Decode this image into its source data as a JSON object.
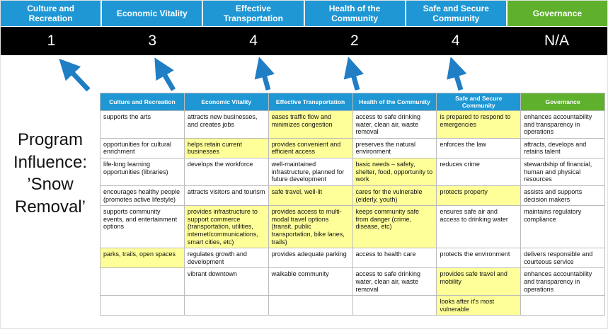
{
  "title": "Program Influence: ’Snow Removal’",
  "colors": {
    "header_blue": "#1f97d4",
    "header_green": "#5fb12d",
    "score_bar": "#000000",
    "score_text": "#ffffff",
    "highlight_yellow": "#ffff99",
    "arrow_blue": "#1f7ec4",
    "grid_border": "#bcbcbc"
  },
  "pillars": [
    {
      "label": "Culture and Recreation",
      "score": "1"
    },
    {
      "label": "Economic Vitality",
      "score": "3"
    },
    {
      "label": "Effective Transportation",
      "score": "4"
    },
    {
      "label": "Health of the Community",
      "score": "2"
    },
    {
      "label": "Safe and Secure Community",
      "score": "4"
    },
    {
      "label": "Governance",
      "score": "N/A"
    }
  ],
  "table": {
    "headers": [
      "Culture and Recreation",
      "Economic Vitality",
      "Effective Transportation",
      "Health of the Community",
      "Safe and Secure Community",
      "Governance"
    ],
    "rows": [
      [
        {
          "t": "supports the arts"
        },
        {
          "t": "attracts new businesses, and creates jobs"
        },
        {
          "t": "eases traffic flow and minimizes congestion",
          "h": true
        },
        {
          "t": "access to safe drinking water, clean air, waste removal"
        },
        {
          "t": "is prepared to respond to emergencies",
          "h": true
        },
        {
          "t": "enhances accountability and transparency in operations"
        }
      ],
      [
        {
          "t": "opportunities for cultural enrichment"
        },
        {
          "t": "helps retain current businesses",
          "h": true
        },
        {
          "t": "provides convenient and efficient access",
          "h": true
        },
        {
          "t": "preserves the natural environment"
        },
        {
          "t": "enforces the law"
        },
        {
          "t": "attracts, develops and retains talent"
        }
      ],
      [
        {
          "t": "life-long learning opportunities (libraries)"
        },
        {
          "t": "develops the workforce"
        },
        {
          "t": "well-maintained infrastructure, planned for future development"
        },
        {
          "t": "basic needs – safety, shelter, food, opportunity to work",
          "h": true
        },
        {
          "t": "reduces crime"
        },
        {
          "t": "stewardship of financial, human and physical resources"
        }
      ],
      [
        {
          "t": "encourages healthy people (promotes active lifestyle)"
        },
        {
          "t": "attracts visitors and tourism"
        },
        {
          "t": "safe travel, well-lit",
          "h": true
        },
        {
          "t": "cares for the vulnerable (elderly, youth)",
          "h": true
        },
        {
          "t": "protects property",
          "h": true
        },
        {
          "t": "assists and supports decision makers"
        }
      ],
      [
        {
          "t": "supports community events, and entertainment options"
        },
        {
          "t": "provides infrastructure to support commerce (transportation, utilities, internet/communications, smart cities, etc)",
          "h": true
        },
        {
          "t": "provides access to multi-modal travel options (transit, public transportation, bike lanes, trails)",
          "h": true
        },
        {
          "t": "keeps community safe from danger (crime, disease, etc)",
          "h": true
        },
        {
          "t": "ensures safe air and access to drinking water"
        },
        {
          "t": "maintains regulatory compliance"
        }
      ],
      [
        {
          "t": "parks, trails, open spaces",
          "h": true
        },
        {
          "t": "regulates growth and development"
        },
        {
          "t": "provides adequate parking"
        },
        {
          "t": "access to health care"
        },
        {
          "t": "protects the environment"
        },
        {
          "t": "delivers responsible and courteous service"
        }
      ],
      [
        {
          "t": ""
        },
        {
          "t": "vibrant downtown"
        },
        {
          "t": "walkable community"
        },
        {
          "t": "access to safe drinking water, clean air, waste removal"
        },
        {
          "t": "provides safe travel and mobility",
          "h": true
        },
        {
          "t": "enhances accountability and transparency in operations"
        }
      ],
      [
        {
          "t": ""
        },
        {
          "t": ""
        },
        {
          "t": ""
        },
        {
          "t": ""
        },
        {
          "t": "looks after it's most vulnerable",
          "h": true
        },
        {
          "t": ""
        }
      ]
    ]
  }
}
